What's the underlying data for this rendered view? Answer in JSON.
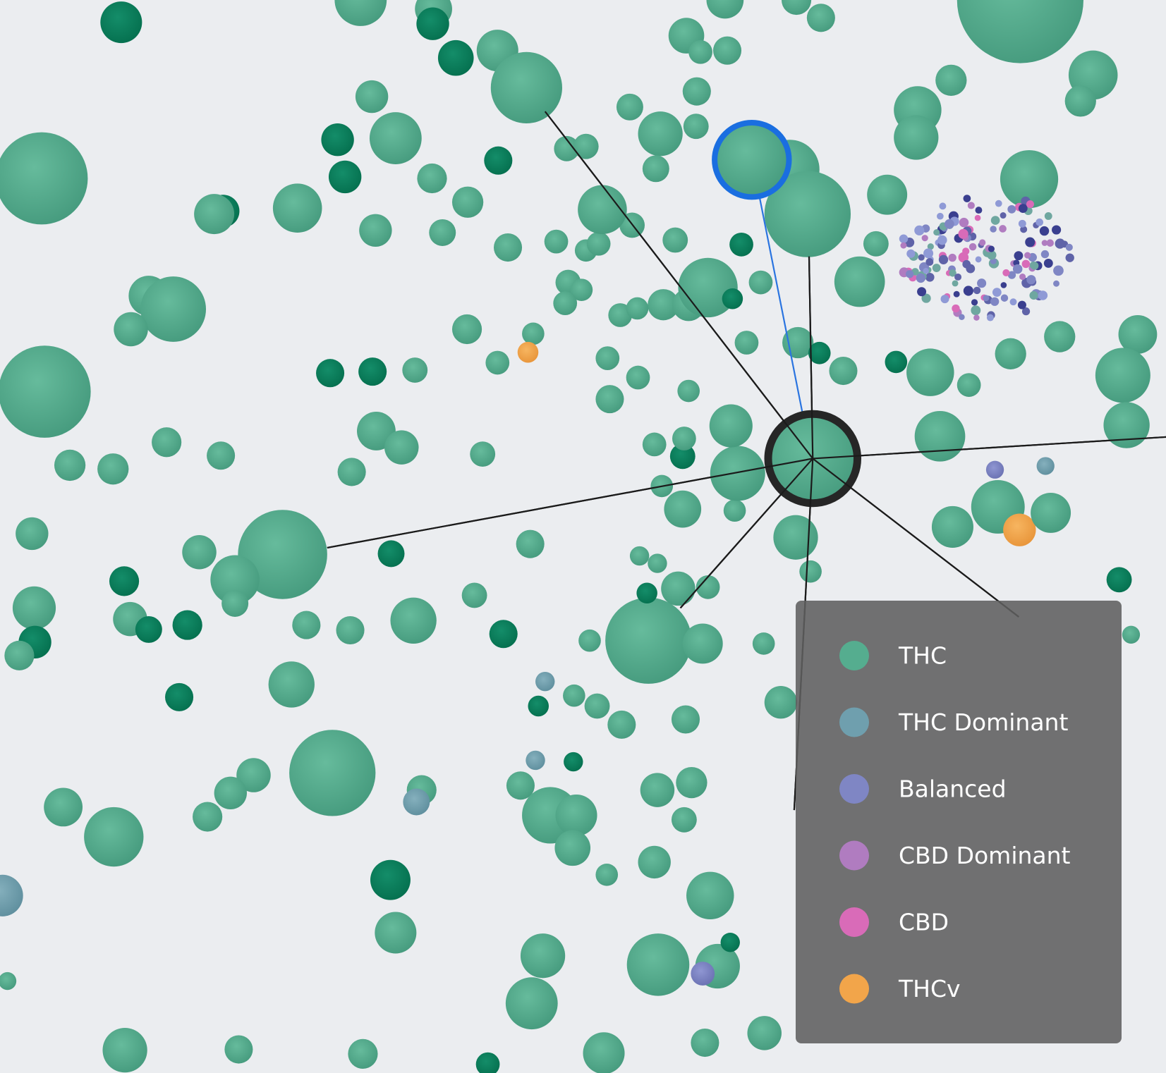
{
  "legend": {
    "items": [
      {
        "label": "THC",
        "color": "#55ad8f"
      },
      {
        "label": "THC Dominant",
        "color": "#6f9fae"
      },
      {
        "label": "Balanced",
        "color": "#7f86c4"
      },
      {
        "label": "CBD Dominant",
        "color": "#b07cc0"
      },
      {
        "label": "CBD",
        "color": "#d96bb8"
      },
      {
        "label": "THCv",
        "color": "#f2a54a"
      }
    ]
  }
}
